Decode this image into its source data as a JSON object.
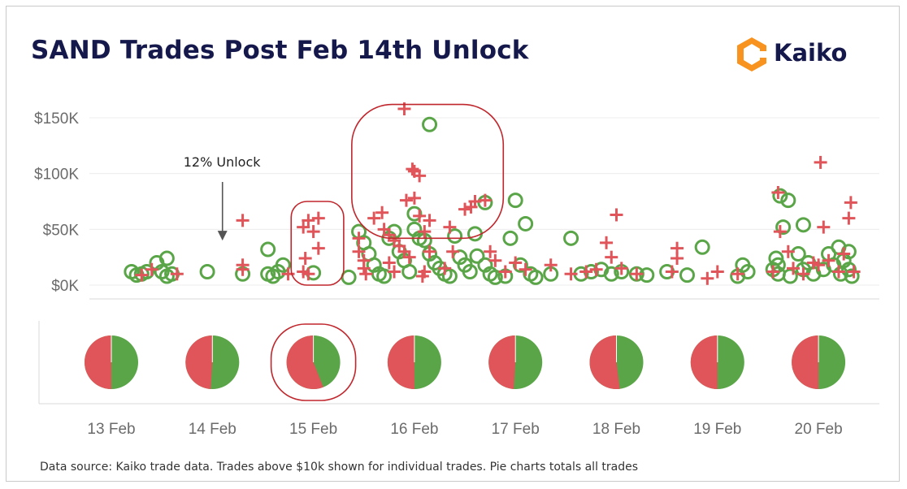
{
  "header": {
    "title": "SAND Trades Post Feb 14th Unlock",
    "logo_text": "Kaiko"
  },
  "footnote": "Data source: Kaiko trade data. Trades above $10k shown for individual trades. Pie charts totals all trades",
  "colors": {
    "sell": "#e0555a",
    "buy": "#5aa548",
    "highlight": "#c0272d",
    "grid": "#ececec",
    "logo_orange": "#f7931e",
    "title": "#15184a"
  },
  "chart_data": [
    {
      "type": "scatter",
      "title": "",
      "xlabel": "",
      "ylabel": "",
      "ylim": [
        0,
        160000
      ],
      "y_ticks": [
        {
          "value": 0,
          "label": "$0K"
        },
        {
          "value": 50000,
          "label": "$50K"
        },
        {
          "value": 100000,
          "label": "$100K"
        },
        {
          "value": 150000,
          "label": "$150K"
        }
      ],
      "x_categories": [
        "13 Feb",
        "14 Feb",
        "15 Feb",
        "16 Feb",
        "17 Feb",
        "18 Feb",
        "19 Feb",
        "20 Feb"
      ],
      "xlim": [
        12.7,
        20.5
      ],
      "grid": true,
      "legend": "none",
      "annotation": {
        "text": "12% Unlock",
        "x": 14.1,
        "y": 40000
      },
      "series": [
        {
          "marker": "cross",
          "color": "#e0555a",
          "points": [
            [
              13.3,
              9000
            ],
            [
              13.4,
              14000
            ],
            [
              13.65,
              10000
            ],
            [
              14.3,
              58000
            ],
            [
              14.3,
              18000
            ],
            [
              14.3,
              14000
            ],
            [
              14.75,
              10000
            ],
            [
              14.9,
              12000
            ],
            [
              15.05,
              60000
            ],
            [
              14.95,
              58000
            ],
            [
              14.9,
              52000
            ],
            [
              15.0,
              48000
            ],
            [
              15.05,
              33000
            ],
            [
              14.92,
              24000
            ],
            [
              14.95,
              10000
            ],
            [
              15.45,
              42000
            ],
            [
              15.45,
              30000
            ],
            [
              15.5,
              22000
            ],
            [
              15.5,
              15000
            ],
            [
              15.52,
              10000
            ],
            [
              15.6,
              60000
            ],
            [
              15.68,
              65000
            ],
            [
              15.75,
              20000
            ],
            [
              15.8,
              40000
            ],
            [
              15.9,
              30000
            ],
            [
              15.8,
              12000
            ],
            [
              15.92,
              76000
            ],
            [
              15.98,
              104000
            ],
            [
              16.05,
              98000
            ],
            [
              15.7,
              50000
            ],
            [
              15.75,
              45000
            ],
            [
              15.85,
              35000
            ],
            [
              15.95,
              25000
            ],
            [
              16.05,
              62000
            ],
            [
              16.15,
              30000
            ],
            [
              16.1,
              12000
            ],
            [
              15.9,
              158000
            ],
            [
              16.0,
              78000
            ],
            [
              16.0,
              102000
            ],
            [
              16.08,
              8000
            ],
            [
              16.1,
              48000
            ],
            [
              16.15,
              58000
            ],
            [
              16.3,
              15000
            ],
            [
              16.35,
              52000
            ],
            [
              16.38,
              30000
            ],
            [
              16.5,
              68000
            ],
            [
              16.56,
              70000
            ],
            [
              16.6,
              75000
            ],
            [
              16.7,
              76000
            ],
            [
              16.75,
              30000
            ],
            [
              16.8,
              22000
            ],
            [
              16.9,
              12000
            ],
            [
              17.0,
              20000
            ],
            [
              17.1,
              14000
            ],
            [
              17.35,
              18000
            ],
            [
              17.55,
              10000
            ],
            [
              17.7,
              12000
            ],
            [
              17.8,
              14000
            ],
            [
              17.9,
              38000
            ],
            [
              17.95,
              25000
            ],
            [
              18.0,
              63000
            ],
            [
              18.05,
              15000
            ],
            [
              18.2,
              10000
            ],
            [
              18.55,
              12000
            ],
            [
              18.6,
              24000
            ],
            [
              18.6,
              33000
            ],
            [
              18.9,
              6000
            ],
            [
              19.0,
              12000
            ],
            [
              19.2,
              10000
            ],
            [
              19.55,
              12000
            ],
            [
              19.6,
              83000
            ],
            [
              19.62,
              48000
            ],
            [
              19.7,
              30000
            ],
            [
              19.75,
              15000
            ],
            [
              19.85,
              10000
            ],
            [
              19.95,
              20000
            ],
            [
              20.0,
              18000
            ],
            [
              20.02,
              110000
            ],
            [
              20.05,
              52000
            ],
            [
              20.1,
              22000
            ],
            [
              20.2,
              12000
            ],
            [
              20.25,
              28000
            ],
            [
              20.3,
              60000
            ],
            [
              20.32,
              74000
            ],
            [
              20.35,
              12000
            ]
          ]
        },
        {
          "marker": "circle",
          "color": "#5aa548",
          "points": [
            [
              13.2,
              12000
            ],
            [
              13.25,
              9000
            ],
            [
              13.3,
              10000
            ],
            [
              13.35,
              12000
            ],
            [
              13.45,
              20000
            ],
            [
              13.5,
              12000
            ],
            [
              13.55,
              24000
            ],
            [
              13.55,
              8000
            ],
            [
              13.6,
              10000
            ],
            [
              13.95,
              12000
            ],
            [
              14.3,
              10000
            ],
            [
              14.55,
              32000
            ],
            [
              14.55,
              10000
            ],
            [
              14.6,
              8000
            ],
            [
              14.65,
              12000
            ],
            [
              14.7,
              18000
            ],
            [
              15.0,
              11000
            ],
            [
              15.35,
              7000
            ],
            [
              15.45,
              48000
            ],
            [
              15.5,
              38000
            ],
            [
              15.55,
              28000
            ],
            [
              15.6,
              18000
            ],
            [
              15.65,
              10000
            ],
            [
              15.7,
              8000
            ],
            [
              15.75,
              42000
            ],
            [
              15.8,
              48000
            ],
            [
              15.85,
              30000
            ],
            [
              15.9,
              22000
            ],
            [
              15.95,
              12000
            ],
            [
              16.0,
              64000
            ],
            [
              16.0,
              50000
            ],
            [
              16.05,
              42000
            ],
            [
              16.1,
              40000
            ],
            [
              16.15,
              144000
            ],
            [
              16.15,
              28000
            ],
            [
              16.2,
              20000
            ],
            [
              16.25,
              15000
            ],
            [
              16.3,
              10000
            ],
            [
              16.35,
              8000
            ],
            [
              16.4,
              44000
            ],
            [
              16.45,
              25000
            ],
            [
              16.5,
              18000
            ],
            [
              16.55,
              12000
            ],
            [
              16.6,
              46000
            ],
            [
              16.62,
              26000
            ],
            [
              16.7,
              74000
            ],
            [
              16.7,
              18000
            ],
            [
              16.75,
              10000
            ],
            [
              16.8,
              7000
            ],
            [
              16.9,
              8000
            ],
            [
              16.95,
              42000
            ],
            [
              17.0,
              76000
            ],
            [
              17.05,
              18000
            ],
            [
              17.1,
              55000
            ],
            [
              17.15,
              10000
            ],
            [
              17.2,
              7000
            ],
            [
              17.35,
              10000
            ],
            [
              17.55,
              42000
            ],
            [
              17.65,
              10000
            ],
            [
              17.75,
              12000
            ],
            [
              17.85,
              14000
            ],
            [
              17.95,
              10000
            ],
            [
              18.05,
              12000
            ],
            [
              18.2,
              10000
            ],
            [
              18.3,
              9000
            ],
            [
              18.5,
              12000
            ],
            [
              18.7,
              9000
            ],
            [
              18.85,
              34000
            ],
            [
              19.2,
              8000
            ],
            [
              19.25,
              18000
            ],
            [
              19.3,
              12000
            ],
            [
              19.55,
              14000
            ],
            [
              19.58,
              24000
            ],
            [
              19.6,
              18000
            ],
            [
              19.6,
              10000
            ],
            [
              19.62,
              80000
            ],
            [
              19.65,
              52000
            ],
            [
              19.7,
              76000
            ],
            [
              19.72,
              8000
            ],
            [
              19.8,
              28000
            ],
            [
              19.85,
              14000
            ],
            [
              19.85,
              54000
            ],
            [
              19.9,
              20000
            ],
            [
              19.95,
              10000
            ],
            [
              20.05,
              14000
            ],
            [
              20.1,
              28000
            ],
            [
              20.15,
              18000
            ],
            [
              20.2,
              34000
            ],
            [
              20.22,
              10000
            ],
            [
              20.25,
              22000
            ],
            [
              20.3,
              30000
            ],
            [
              20.3,
              14000
            ],
            [
              20.33,
              8000
            ]
          ]
        }
      ],
      "highlights": [
        {
          "x0": 14.78,
          "x1": 15.3,
          "y0": 0,
          "y1": 75000
        },
        {
          "x0": 15.38,
          "x1": 16.88,
          "y0": 42000,
          "y1": 162000
        }
      ]
    },
    {
      "type": "pie",
      "categories": [
        "13 Feb",
        "14 Feb",
        "15 Feb",
        "16 Feb",
        "17 Feb",
        "18 Feb",
        "19 Feb",
        "20 Feb"
      ],
      "series": [
        {
          "color": "#e0555a",
          "values": [
            0.5,
            0.49,
            0.56,
            0.5,
            0.49,
            0.52,
            0.5,
            0.5
          ]
        },
        {
          "color": "#5aa548",
          "values": [
            0.5,
            0.51,
            0.44,
            0.5,
            0.51,
            0.48,
            0.5,
            0.5
          ]
        }
      ],
      "highlight_category": "15 Feb"
    }
  ]
}
